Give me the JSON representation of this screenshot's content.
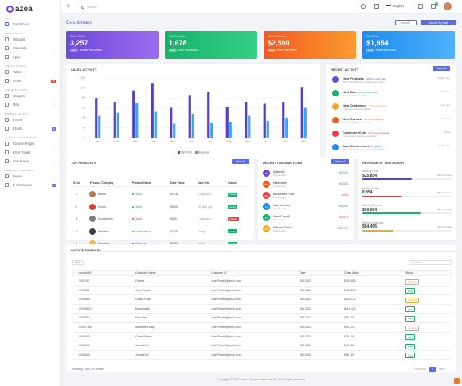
{
  "app": {
    "name": "azea"
  },
  "sidebar": {
    "sections": [
      {
        "label": "Main",
        "items": [
          {
            "label": "Dashboard",
            "icon": "home-icon",
            "active": true,
            "chevron": false
          }
        ]
      },
      {
        "label": "Components",
        "items": [
          {
            "label": "Widgets",
            "icon": "widget-icon",
            "chevron": true
          },
          {
            "label": "Elements",
            "icon": "element-icon",
            "chevron": true
          },
          {
            "label": "Apps",
            "icon": "apps-icon",
            "chevron": true
          }
        ]
      },
      {
        "label": "Tables & Icons",
        "items": [
          {
            "label": "Tables",
            "icon": "table-icon",
            "chevron": true
          },
          {
            "label": "Icons",
            "icon": "icons-icon",
            "badge": "75"
          }
        ]
      },
      {
        "label": "Widgets & Maps",
        "items": [
          {
            "label": "Widgets",
            "icon": "widget-icon",
            "chevron": true
          },
          {
            "label": "Map",
            "icon": "map-icon",
            "chevron": true
          }
        ]
      },
      {
        "label": "Forms & Charts",
        "items": [
          {
            "label": "Forms",
            "icon": "form-icon",
            "chevron": true
          },
          {
            "label": "Charts",
            "icon": "chart-icon",
            "badge": "5"
          }
        ]
      },
      {
        "label": "Custom & Error Pages",
        "items": [
          {
            "label": "Custom Pages",
            "icon": "page-icon",
            "chevron": true
          },
          {
            "label": "Error Pages",
            "icon": "error-icon",
            "chevron": true
          },
          {
            "label": "Sub Menus",
            "icon": "menu-icon",
            "chevron": true
          }
        ]
      },
      {
        "label": "Pages & E-Commerce",
        "items": [
          {
            "label": "Pages",
            "icon": "pages-icon",
            "chevron": true
          },
          {
            "label": "E-Commerce",
            "icon": "shop-icon",
            "badge": "8"
          }
        ]
      }
    ]
  },
  "topbar": {
    "search_placeholder": "Search",
    "language": "English",
    "notif_count": "3"
  },
  "page": {
    "title": "Dashboard",
    "import_label": "Import",
    "search_by_date_label": "Search By Date"
  },
  "kpis": [
    {
      "label": "Total Sales",
      "value": "3,257",
      "change": "76%",
      "note": "Growth This Month",
      "from": "#6c4ad8",
      "to": "#9b6cf0"
    },
    {
      "label": "Total Users",
      "value": "1,678",
      "change": "10%",
      "note": "Less This Month",
      "from": "#17b26a",
      "to": "#35cf85"
    },
    {
      "label": "Total Income",
      "value": "$2,590",
      "change": "12%",
      "note": "From Last Month",
      "from": "#f25b22",
      "to": "#fb9a2e"
    },
    {
      "label": "Total Tax",
      "value": "$1,954",
      "change": "10%",
      "note": "From Last Month",
      "from": "#1f8bf0",
      "to": "#4fb2fb"
    }
  ],
  "sales_activity": {
    "title": "Sales Activity",
    "view_all": "View All",
    "legend": [
      "Net Profit",
      "Revenue"
    ]
  },
  "chart_data": {
    "type": "bar",
    "categories": [
      "Jan",
      "Feb",
      "Mar",
      "Apr",
      "May",
      "Jun",
      "Jul",
      "Aug",
      "Sep",
      "Oct",
      "Nov",
      "Dec"
    ],
    "series": [
      {
        "name": "Net Profit",
        "values": [
          80,
          72,
          95,
          110,
          60,
          86,
          92,
          62,
          72,
          68,
          72,
          102
        ],
        "color": "#5a3dc8"
      },
      {
        "name": "Revenue",
        "values": [
          44,
          50,
          70,
          52,
          28,
          48,
          30,
          32,
          44,
          34,
          40,
          60
        ],
        "color": "#34a8f0"
      }
    ],
    "yticks": [
      0,
      20,
      40,
      60,
      80,
      100,
      120
    ],
    "ylim": [
      0,
      120
    ],
    "legend": "bottom"
  },
  "recent_activity": {
    "title": "Recent Activity",
    "view_all": "View All",
    "items": [
      {
        "title": "New Products",
        "highlight": "10% from last year",
        "desc": "More than 300 new products are added",
        "time": "6 days ago",
        "color": "#6c4ad8"
      },
      {
        "title": "New Sale",
        "highlight": "5% from last week",
        "desc": "50 new items are sold",
        "time": "2 min ago",
        "color": "#17b26a"
      },
      {
        "title": "New Customers",
        "highlight": "7% from last year",
        "desc": "1,00 new customers added",
        "time": "5 min ago",
        "color": "#f5a623"
      },
      {
        "title": "New Reviews",
        "highlight": "4% from last week",
        "desc": "There are 650 new reviews",
        "time": "2 min ago",
        "color": "#f25b22"
      },
      {
        "title": "Customer Visits",
        "highlight": "0% target achieved",
        "desc": "Lots of users visited our website",
        "time": "today",
        "color": "#e83e3e"
      },
      {
        "title": "Sale Conversions",
        "highlight": "8% growth",
        "desc": "More than 3,00 new products are added",
        "time": "2 days ago",
        "color": "#1f8bf0"
      }
    ]
  },
  "top_products": {
    "title": "Top Products",
    "view_all": "View All",
    "columns": [
      "S.No",
      "Product Category",
      "Product Name",
      "Date Value",
      "Date Info",
      "Status"
    ],
    "rows": [
      {
        "sno": "1",
        "category": "Books",
        "name": "Stock",
        "value": "$1104",
        "date": "3 days ago",
        "status": "Active",
        "status_color": "#17b26a",
        "name_color": "#17b26a",
        "img": "#b07c52"
      },
      {
        "sno": "2",
        "category": "Sports",
        "name": "Stock",
        "value": "$5506",
        "date": "16 days ago",
        "status": "Active",
        "status_color": "#17b26a",
        "name_color": "#17b26a",
        "img": "#d9463a"
      },
      {
        "sno": "3",
        "category": "Accessories",
        "name": "Stock",
        "value": "$946",
        "date": "2 days ago",
        "status": "Inactive",
        "status_color": "#e83e3e",
        "name_color": "#e83e3e",
        "img": "#7d7d7d"
      },
      {
        "sno": "4",
        "category": "Watches",
        "name": "Small Watch",
        "value": "$2341",
        "date": "Today",
        "status": "Active",
        "status_color": "#17b26a",
        "name_color": "#17b26a",
        "img": "#3e3e3e"
      },
      {
        "sno": "5",
        "category": "Speakers",
        "name": "Chair set",
        "value": "$4497",
        "date": "Today",
        "status": "Active",
        "status_color": "#17b26a",
        "name_color": "#6c4ad8",
        "img": "#f2b84b"
      }
    ]
  },
  "recent_transactions": {
    "title": "Recent Transactions",
    "view_all": "View All",
    "items": [
      {
        "initials": "AD",
        "name": "Adsense",
        "time": "2 hours ago",
        "amount": "+$3,030",
        "amount_color": "#17b26a",
        "color": "#6c4ad8"
      },
      {
        "initials": "MC",
        "name": "Macrosoft",
        "time": "1 hours ago",
        "amount": "+$2,530",
        "amount_color": "#17b26a",
        "color": "#f25b22"
      },
      {
        "initials": "AE",
        "name": "Alexander Ford",
        "time": "3 hours ago",
        "amount": "-$234",
        "amount_color": "#e83e3e",
        "color": "#e83e3e"
      },
      {
        "initials": "KJ",
        "name": "kate johnson",
        "time": "2 hours ago",
        "amount": "+$3,542",
        "amount_color": "#17b26a",
        "color": "#1f8bf0"
      },
      {
        "initials": "JP",
        "name": "Jean Powell",
        "time": "4 hours ago",
        "amount": "+$3,578",
        "amount_color": "#e83e3e",
        "color": "#17b26a"
      },
      {
        "initials": "MC",
        "name": "Malone Chen",
        "time": "5 hours ago",
        "amount": "+$22,178",
        "amount_color": "#e83e3e",
        "color": "#f5a623"
      }
    ]
  },
  "revenue": {
    "title": "Revenue of this Month",
    "items": [
      {
        "label": "Monthly Profit",
        "value": "$25,854",
        "change": "40% increase",
        "progress": 0.55,
        "color": "#5a3dc8"
      },
      {
        "label": "Monthly Orders",
        "value": "8,854",
        "change": "39% increase",
        "progress": 0.45,
        "color": "#e83e3e"
      },
      {
        "label": "Monthly Revenue",
        "value": "$90,654",
        "change": "30% increase",
        "progress": 0.65,
        "color": "#17b26a"
      },
      {
        "label": "Monthly Expenses",
        "value": "$54,456",
        "change": "40% increase",
        "progress": 0.35,
        "color": "#f5a623"
      }
    ]
  },
  "invoice": {
    "title": "Invoice Summary",
    "page_size": "10",
    "search_placeholder": "Search",
    "columns": [
      "Invoice ID",
      "Customer Name",
      "Customer ID",
      "Date",
      "Order Value",
      "Status"
    ],
    "rows": [
      {
        "id": "0001997",
        "name": "Gabriel",
        "cid": "JeanPowell@gmail.com",
        "date": "08/1/2021",
        "value": "$230,560",
        "status": "Pending",
        "color": "#f5a623"
      },
      {
        "id": "0001821",
        "name": "Jean Powell",
        "cid": "JeanPowell@gmail.com",
        "date": "08/1/2021",
        "value": "$460,870",
        "status": "Paid",
        "color": "#17b26a"
      },
      {
        "id": "000456S",
        "name": "Caden Kelly",
        "cid": "JeanPowell@gmail.com",
        "date": "08/1/2021",
        "value": "$226,130",
        "status": "Pending",
        "color": "#f5a623"
      },
      {
        "id": "000456Z4",
        "name": "Mona Inalty",
        "cid": "JeanPowell@gmail.com",
        "date": "08/1/2021",
        "value": "$216,430",
        "status": "Paid",
        "color": "#17b26a"
      },
      {
        "id": "0004552",
        "name": "Earl allen",
        "cid": "JeanPowell@gmail.com",
        "date": "08/1/2021",
        "value": "$56,160",
        "status": "Paid",
        "color": "#17b26a"
      },
      {
        "id": "000473A5",
        "name": "Samantha May",
        "cid": "JeanPowell@gmail.com",
        "date": "08/1/2021",
        "value": "$45,128",
        "status": "Pending",
        "color": "#f5a623"
      },
      {
        "id": "0004515",
        "name": "Gavin Gibson",
        "cid": "JeanPowell@gmail.com",
        "date": "08/1/2021",
        "value": "$25,150",
        "status": "Paid",
        "color": "#17b26a"
      },
      {
        "id": "0004524",
        "name": "Jonas Earl",
        "cid": "JeanPowell@gmail.com",
        "date": "08/1/2021",
        "value": "$46,150",
        "status": "Paid",
        "color": "#17b26a"
      },
      {
        "id": "0004526",
        "name": "Jonas Earl",
        "cid": "JeanPowell@gmail.com",
        "date": "08/1/2021",
        "value": "$96,150",
        "status": "Paid",
        "color": "#17b26a"
      }
    ],
    "footer_text": "Showing 1 to 9 of 9 entries",
    "prev": "Previous",
    "page": "1",
    "next": "Next"
  },
  "footer": {
    "text": "Copyright © 2022. azea. Designed with ♥ by Spruko All rights reserved"
  }
}
